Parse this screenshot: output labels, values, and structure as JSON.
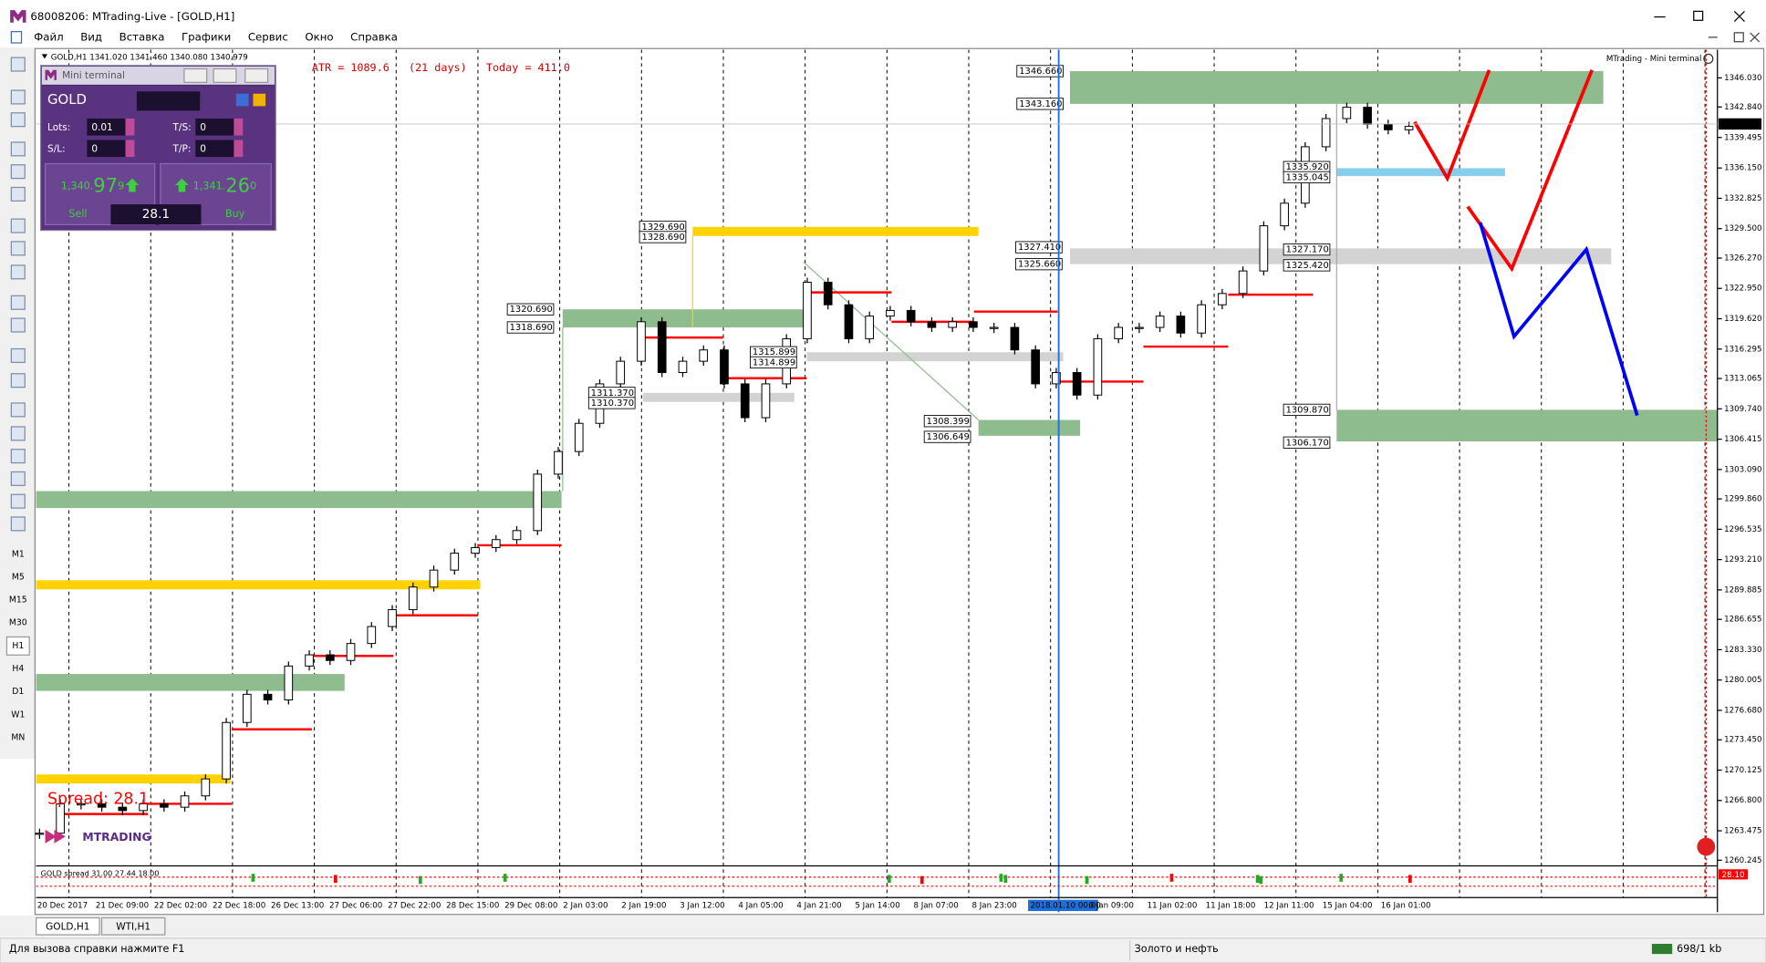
{
  "window": {
    "title": "68008206: MTrading-Live - [GOLD,H1]"
  },
  "menu": [
    "Файл",
    "Вид",
    "Вставка",
    "Графики",
    "Сервис",
    "Окно",
    "Справка"
  ],
  "timeframes": [
    "M1",
    "M5",
    "M15",
    "M30",
    "H1",
    "H4",
    "D1",
    "W1",
    "MN"
  ],
  "mini_terminal": {
    "title": "Mini terminal",
    "symbol": "GOLD",
    "lots_label": "Lots:",
    "lots": "0.01",
    "ts_label": "T/S:",
    "ts": "0",
    "sl_label": "S/L:",
    "sl": "0",
    "tp_label": "T/P:",
    "tp": "0",
    "sell_main": "1,340.",
    "sell_big": "97",
    "sell_last": "9",
    "buy_main": "1,341.",
    "buy_big": "26",
    "buy_last": "0",
    "spread": "28.1",
    "sell": "Sell",
    "buy": "Buy"
  },
  "chart": {
    "info": "GOLD,H1  1341.020 1341.460 1340.080 1340.979",
    "atr": "ATR = 1089.6   (21 days)   Today = 411.0",
    "corner_label": "MTrading - Mini terminal",
    "spread_label": "Spread: 28.1",
    "logo": "MTRADING",
    "current_price": 1340.979,
    "ylim": [
      1259.87,
      1349.0
    ],
    "yticks": [
      {
        "value": 1346.03,
        "label": "1346.030"
      },
      {
        "value": 1342.84,
        "label": "1342.840"
      },
      1339.495,
      {
        "value": 1336.15,
        "label": "1336.150"
      },
      1332.825,
      {
        "value": 1329.5,
        "label": "1329.500"
      },
      {
        "value": 1326.27,
        "label": "1326.270"
      },
      {
        "value": 1322.95,
        "label": "1322.950"
      },
      {
        "value": 1319.62,
        "label": "1319.620"
      },
      1316.295,
      1313.065,
      {
        "value": 1309.74,
        "label": "1309.740"
      },
      1306.415,
      {
        "value": 1303.09,
        "label": "1303.090"
      },
      {
        "value": 1299.86,
        "label": "1299.860"
      },
      1296.535,
      {
        "value": 1293.21,
        "label": "1293.210"
      },
      1289.885,
      1286.655,
      {
        "value": 1283.33,
        "label": "1283.330"
      },
      1280.005,
      {
        "value": 1276.68,
        "label": "1276.680"
      },
      {
        "value": 1273.45,
        "label": "1273.450"
      },
      1270.125,
      {
        "value": 1266.8,
        "label": "1266.800"
      },
      1263.475,
      1260.245
    ],
    "xlabels": [
      "20 Dec 2017",
      "21 Dec 09:00",
      "22 Dec 02:00",
      "22 Dec 18:00",
      "26 Dec 13:00",
      "27 Dec 06:00",
      "27 Dec 22:00",
      "28 Dec 15:00",
      "29 Dec 08:00",
      "2 Jan 03:00",
      "2 Jan 19:00",
      "3 Jan 12:00",
      "4 Jan 05:00",
      "4 Jan 21:00",
      "5 Jan 14:00",
      "8 Jan 07:00",
      "8 Jan 23:00",
      "2018.01.10 00:00",
      "0 Jan 09:00",
      "11 Jan 02:00",
      "11 Jan 18:00",
      "12 Jan 11:00",
      "15 Jan 04:00",
      "16 Jan 01:00"
    ],
    "closes": [
      1263.21,
      1266.43,
      1266.43,
      1266.06,
      1265.69,
      1266.43,
      1266.06,
      1267.3,
      1269.16,
      1275.35,
      1278.44,
      1277.82,
      1281.54,
      1282.77,
      1282.15,
      1284.01,
      1285.87,
      1287.72,
      1290.2,
      1292.06,
      1293.91,
      1294.53,
      1295.4,
      1296.39,
      1302.58,
      1305.06,
      1308.15,
      1312.48,
      1314.96,
      1319.29,
      1313.72,
      1314.96,
      1316.2,
      1312.48,
      1308.77,
      1312.48,
      1317.43,
      1323.62,
      1321.15,
      1317.43,
      1319.91,
      1320.53,
      1319.29,
      1318.67,
      1319.29,
      1318.67,
      1318.67,
      1316.2,
      1312.48,
      1313.72,
      1311.25,
      1317.43,
      1318.67,
      1318.67,
      1319.91,
      1318.05,
      1321.15,
      1322.39,
      1324.86,
      1329.81,
      1332.29,
      1338.48,
      1341.57,
      1342.81,
      1340.95,
      1340.34,
      1340.71
    ],
    "price_tags": [
      "1346.660",
      "1343.160",
      "1329.690",
      "1328.690",
      "1320.690",
      "1318.690",
      "1315.899",
      "1314.899",
      "1311.370",
      "1310.370",
      "1308.399",
      "1306.649",
      "1327.410",
      "1325.660",
      "1335.920",
      "1335.045",
      "1327.170",
      "1325.420",
      "1309.870",
      "1306.170"
    ]
  },
  "subwindow": {
    "label": "GOLD spread 31.00 27.44 18.00",
    "value_tag": "28.10"
  },
  "tabs": [
    "GOLD,H1",
    "WTI,H1"
  ],
  "status": {
    "help": "Для вызова справки нажмите F1",
    "profile": "Золото и нефть",
    "traffic": "698/1 kb"
  }
}
